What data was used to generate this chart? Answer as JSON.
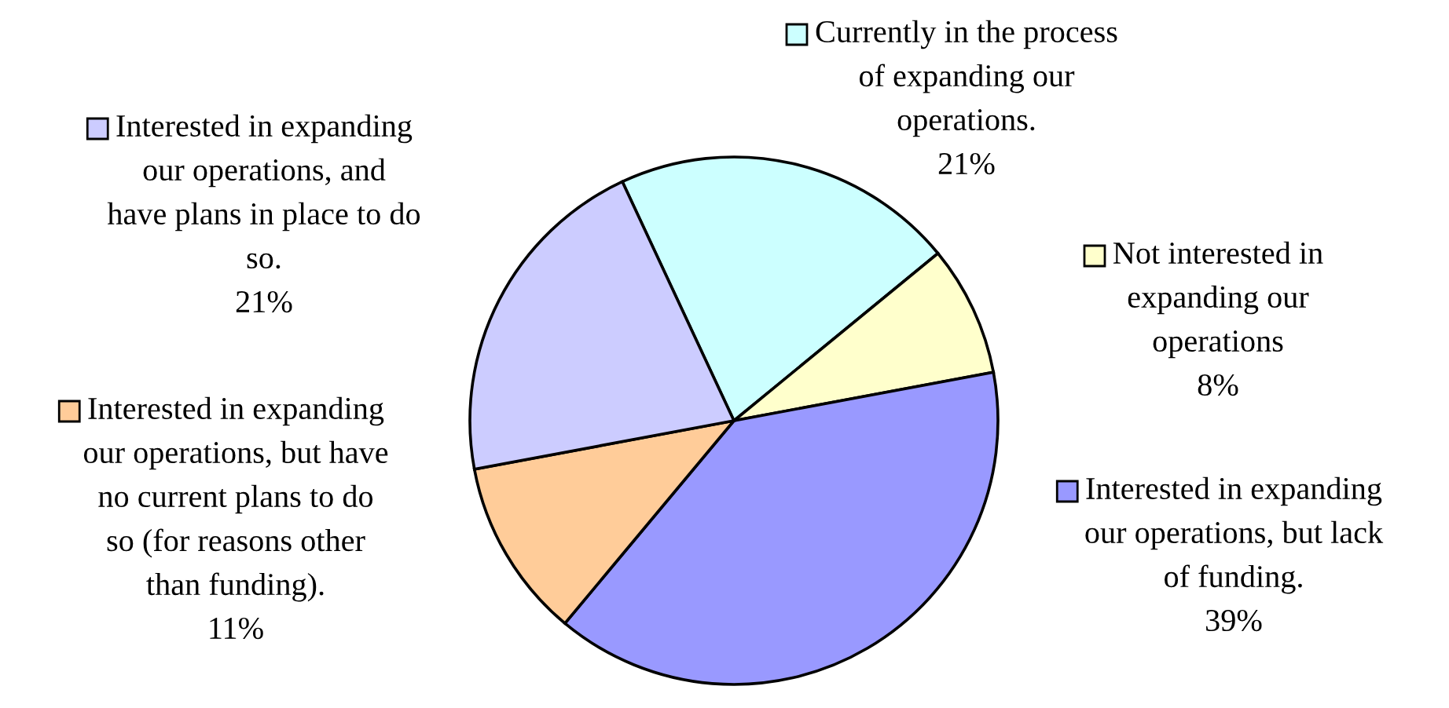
{
  "chart_data": {
    "type": "pie",
    "categories": [
      "Currently in the process of expanding our operations.",
      "Not interested in expanding our operations",
      "Interested in expanding our operations, but lack of funding.",
      "Interested in expanding our operations, but have no current plans to do so (for reasons other than funding).",
      "Interested in expanding our operations, and have plans in place to do so."
    ],
    "values": [
      21,
      8,
      39,
      11,
      21
    ],
    "value_labels": [
      "21%",
      "8%",
      "39%",
      "11%",
      "21%"
    ],
    "colors": [
      "#ccffff",
      "#ffffcc",
      "#9999ff",
      "#ffcc99",
      "#ccccff"
    ],
    "legend": "right"
  }
}
